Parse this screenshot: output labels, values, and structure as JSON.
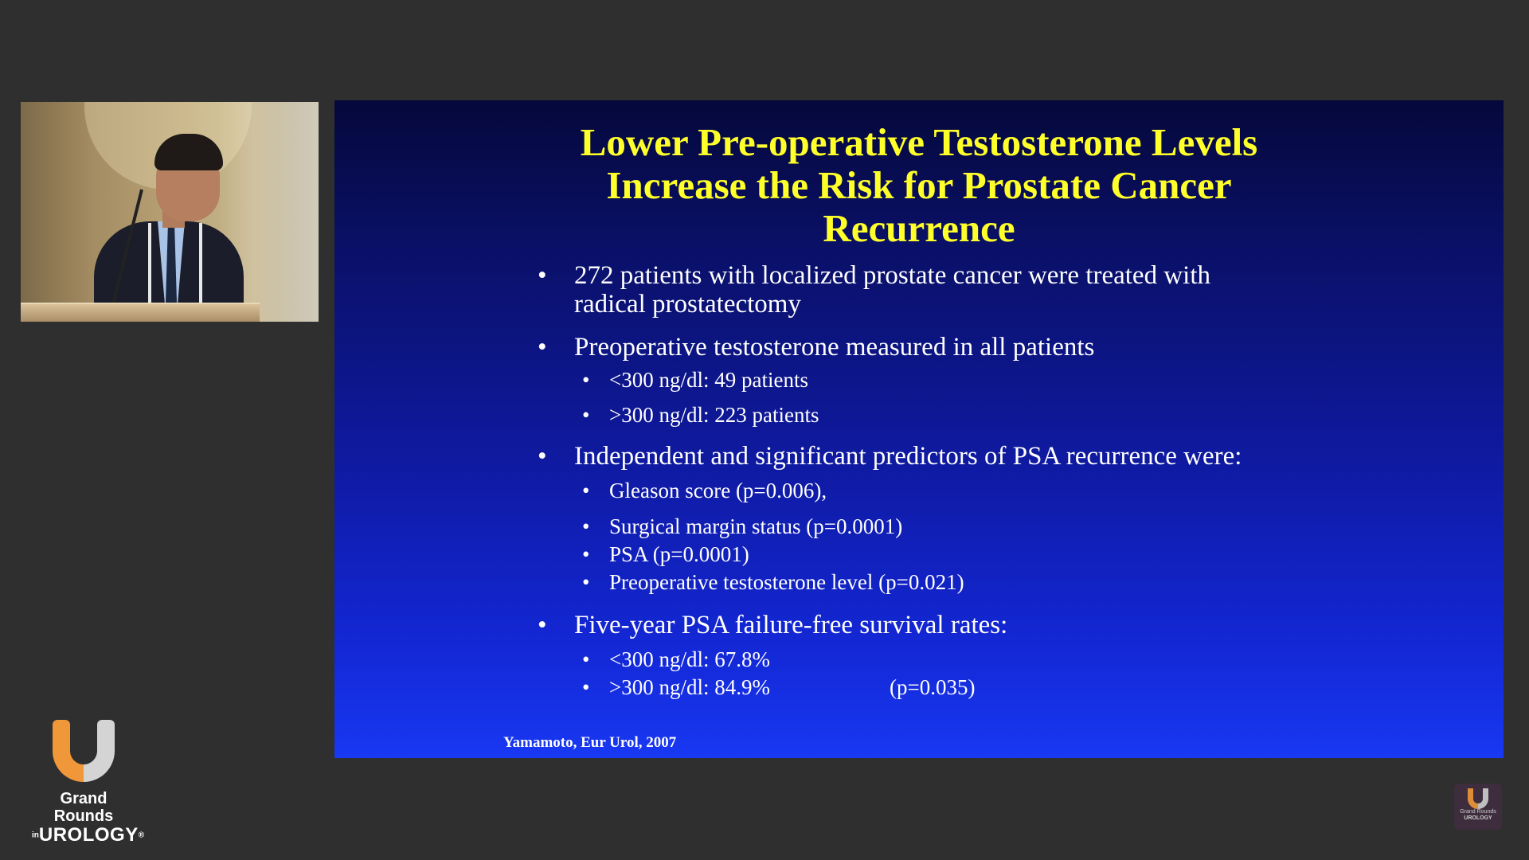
{
  "slide": {
    "title_lines": [
      "Lower Pre-operative Testosterone Levels",
      "Increase the Risk for Prostate Cancer",
      "Recurrence"
    ],
    "bullets": {
      "b1": {
        "line1": "272 patients with localized prostate cancer were treated with",
        "line2": "radical prostatectomy"
      },
      "b2": {
        "text": "Preoperative testosterone measured in all patients",
        "sub": [
          "<300 ng/dl: 49 patients",
          ">300 ng/dl: 223 patients"
        ]
      },
      "b3": {
        "text": "Independent and significant predictors of PSA recurrence were:",
        "sub": [
          "Gleason score (p=0.006),",
          "Surgical margin status (p=0.0001)",
          "PSA (p=0.0001)",
          "Preoperative testosterone level (p=0.021)"
        ]
      },
      "b4": {
        "text": "Five-year PSA failure-free survival rates:",
        "sub": [
          "<300 ng/dl: 67.8%",
          ">300 ng/dl: 84.9%"
        ],
        "p_value": "(p=0.035)"
      }
    },
    "citation": "Yamamoto, Eur Urol, 2007"
  },
  "branding": {
    "logo_line1": "Grand Rounds",
    "logo_in": "in",
    "logo_line2": "UROLOGY",
    "logo_registered": "®",
    "accent_orange": "#f0973a",
    "accent_gray": "#d4d4d4"
  },
  "colors": {
    "title": "#ffff2a",
    "slide_top": "#05083b",
    "slide_bottom": "#1838f2",
    "background": "#2f2f2f"
  }
}
